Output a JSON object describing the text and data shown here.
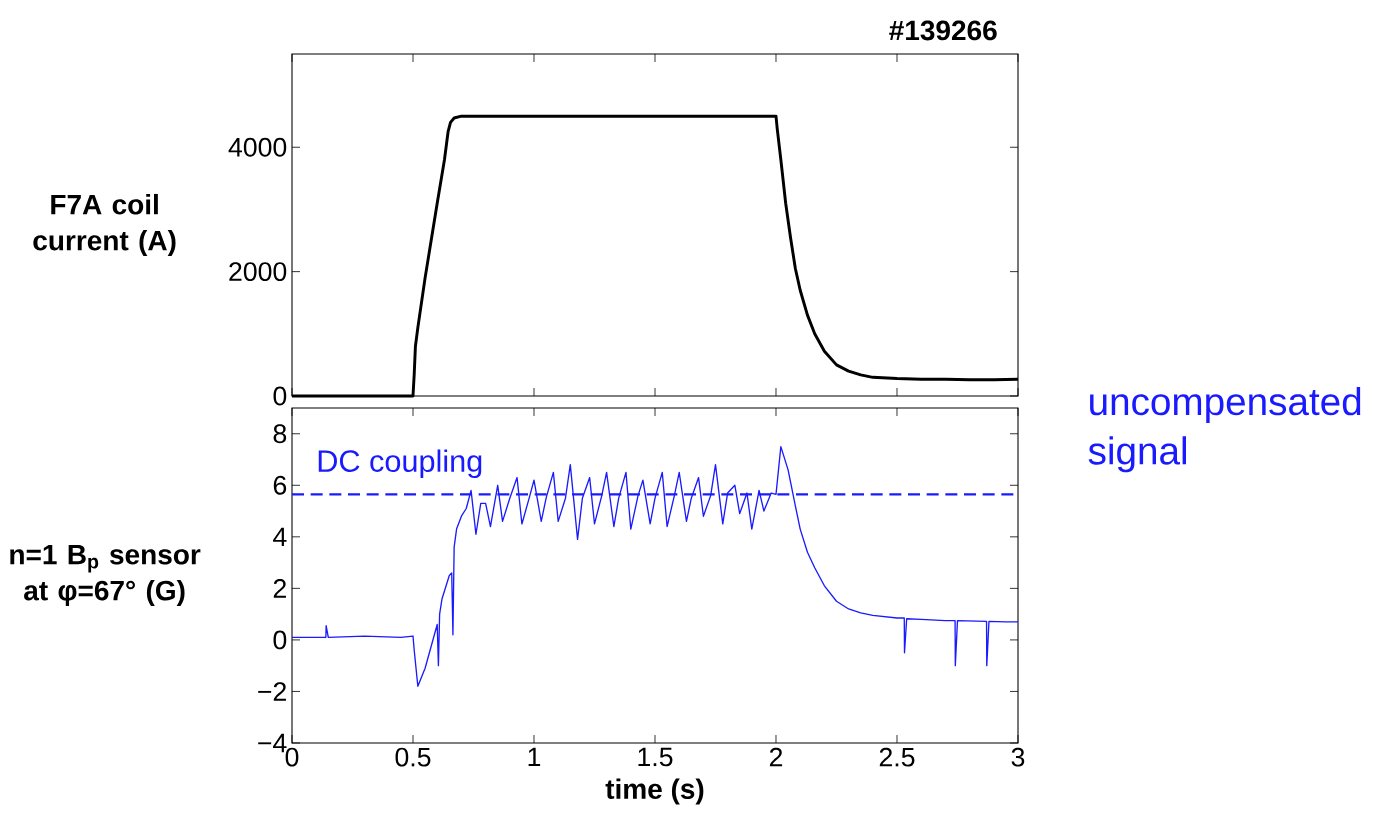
{
  "chart_data": [
    {
      "type": "line",
      "title": "#139266",
      "ylabel": "F7A coil current (A)",
      "xlim": [
        0,
        3
      ],
      "xticks": [
        0,
        0.5,
        1,
        1.5,
        2,
        2.5,
        3
      ],
      "ylim": [
        0,
        5500
      ],
      "yticks": [
        0,
        2000,
        4000
      ],
      "tick_labels": "y",
      "color": "#000000",
      "x": [
        0,
        0.25,
        0.49,
        0.5,
        0.505,
        0.51,
        0.52,
        0.55,
        0.6,
        0.63,
        0.645,
        0.655,
        0.67,
        0.7,
        0.8,
        1.0,
        1.2,
        1.5,
        1.8,
        2.0,
        2.005,
        2.02,
        2.04,
        2.06,
        2.08,
        2.1,
        2.13,
        2.16,
        2.2,
        2.25,
        2.3,
        2.35,
        2.4,
        2.5,
        2.6,
        2.7,
        2.8,
        2.9,
        3.0
      ],
      "values": [
        0,
        0,
        0,
        0,
        350,
        800,
        1100,
        1900,
        3100,
        3800,
        4250,
        4400,
        4470,
        4500,
        4500,
        4500,
        4500,
        4500,
        4500,
        4500,
        4300,
        3800,
        3100,
        2550,
        2050,
        1700,
        1300,
        1000,
        720,
        500,
        400,
        340,
        300,
        280,
        270,
        270,
        260,
        260,
        270
      ]
    },
    {
      "type": "line",
      "xlabel": "time (s)",
      "ylabel": "n=1 B$_{p}$ sensor at φ=67° (G)",
      "xlim": [
        0,
        3
      ],
      "xticks": [
        0,
        0.5,
        1,
        1.5,
        2,
        2.5,
        3
      ],
      "ylim": [
        -4,
        9
      ],
      "yticks": [
        {
          "value": -4,
          "label": "−4"
        },
        {
          "value": -2,
          "label": "−2"
        },
        0,
        2,
        4,
        6,
        8
      ],
      "color": "#1a1aff",
      "ref_lines": [
        {
          "axis": "y",
          "value": 5.65,
          "label": "DC coupling",
          "color": "#1a1aff",
          "line_style": "dashed"
        }
      ],
      "annotations": [
        "uncompensated signal"
      ],
      "x": [
        0,
        0.06,
        0.14,
        0.141,
        0.15,
        0.3,
        0.45,
        0.5,
        0.505,
        0.52,
        0.55,
        0.6,
        0.605,
        0.61,
        0.62,
        0.65,
        0.66,
        0.665,
        0.67,
        0.68,
        0.7,
        0.72,
        0.74,
        0.76,
        0.78,
        0.8,
        0.82,
        0.85,
        0.87,
        0.9,
        0.93,
        0.95,
        0.98,
        1.0,
        1.03,
        1.05,
        1.08,
        1.1,
        1.13,
        1.15,
        1.18,
        1.2,
        1.23,
        1.25,
        1.28,
        1.3,
        1.33,
        1.35,
        1.38,
        1.4,
        1.43,
        1.45,
        1.48,
        1.5,
        1.53,
        1.55,
        1.58,
        1.6,
        1.63,
        1.65,
        1.68,
        1.7,
        1.73,
        1.75,
        1.78,
        1.8,
        1.83,
        1.85,
        1.88,
        1.9,
        1.93,
        1.95,
        1.98,
        2.0,
        2.02,
        2.05,
        2.08,
        2.1,
        2.13,
        2.16,
        2.2,
        2.25,
        2.3,
        2.35,
        2.4,
        2.5,
        2.53,
        2.531,
        2.54,
        2.6,
        2.7,
        2.74,
        2.741,
        2.75,
        2.87,
        2.871,
        2.88,
        2.95,
        3.0
      ],
      "values": [
        0.1,
        0.1,
        0.1,
        0.55,
        0.1,
        0.15,
        0.1,
        0.15,
        -0.4,
        -1.8,
        -1.1,
        0.6,
        -1.0,
        1.0,
        1.6,
        2.5,
        2.6,
        0.2,
        3.6,
        4.3,
        4.8,
        5.1,
        5.8,
        4.1,
        5.3,
        5.3,
        4.4,
        6.0,
        4.6,
        5.5,
        6.3,
        4.5,
        5.5,
        6.2,
        4.6,
        5.5,
        6.5,
        4.6,
        5.5,
        6.8,
        3.9,
        5.5,
        6.3,
        4.5,
        5.6,
        6.5,
        4.4,
        5.5,
        6.5,
        4.3,
        5.6,
        6.2,
        4.5,
        5.5,
        6.5,
        4.4,
        5.6,
        6.5,
        4.6,
        5.5,
        6.3,
        4.8,
        5.6,
        6.8,
        4.5,
        5.7,
        6.0,
        4.9,
        5.7,
        4.3,
        5.8,
        5.0,
        5.7,
        5.65,
        7.5,
        6.6,
        5.2,
        4.3,
        3.4,
        2.8,
        2.1,
        1.5,
        1.2,
        1.05,
        0.95,
        0.85,
        0.85,
        -0.5,
        0.82,
        0.8,
        0.75,
        0.75,
        -1.0,
        0.75,
        0.72,
        -1.0,
        0.72,
        0.7,
        0.7
      ]
    }
  ]
}
